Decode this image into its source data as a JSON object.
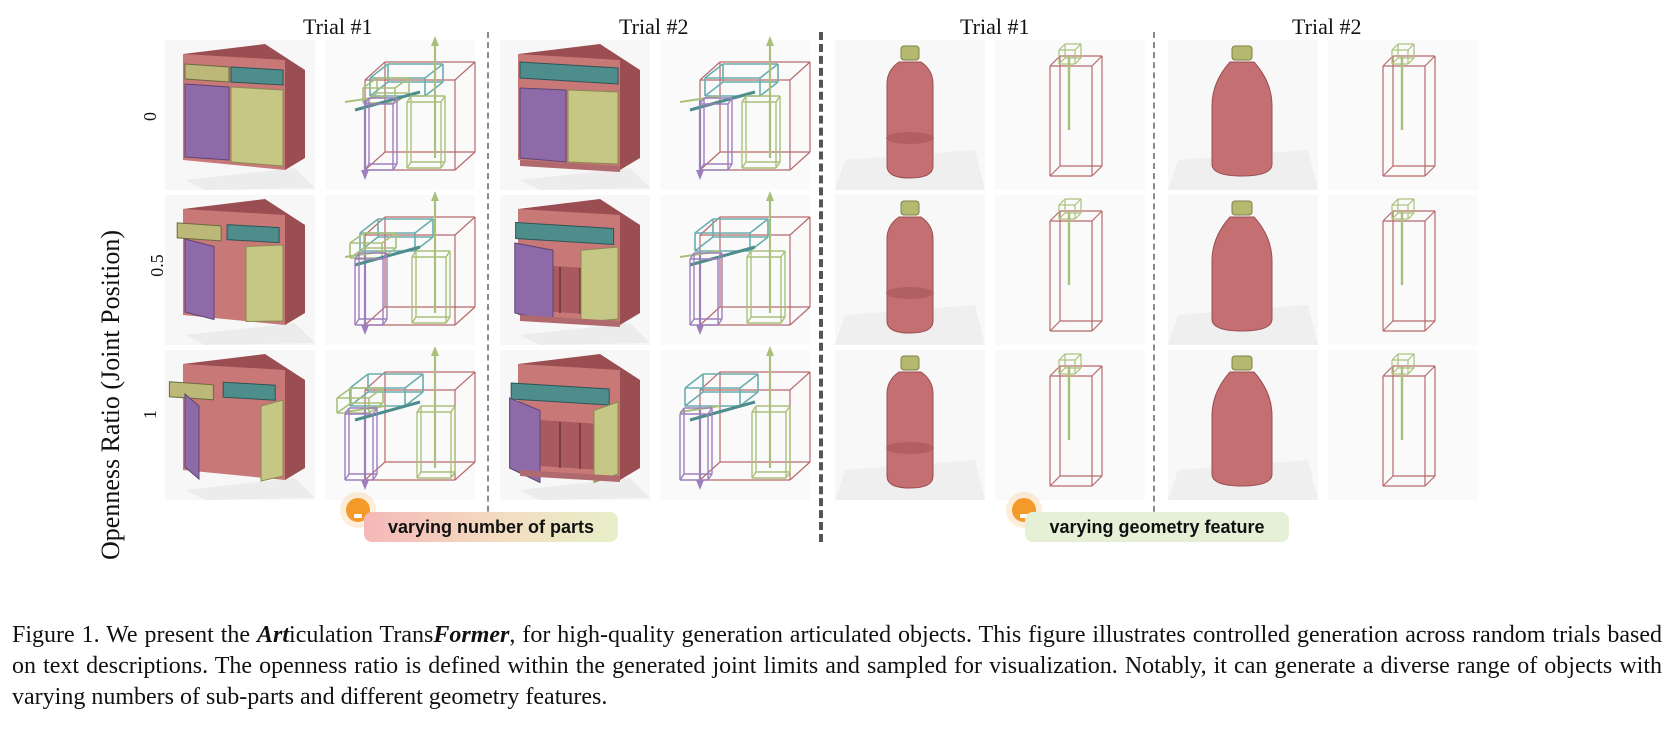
{
  "headers": {
    "col1": "Trial #1",
    "col2": "Trial #2",
    "col3": "Trial #1",
    "col4": "Trial #2"
  },
  "y_axis_label": "Openness Ratio (Joint Position)",
  "row_labels": [
    "0",
    "0.5",
    "1"
  ],
  "badges": {
    "left": "varying number of parts",
    "right": "varying geometry feature"
  },
  "caption": {
    "prefix": "Figure 1.  We present the ",
    "bold1": "Art",
    "mid1": "iculation Trans",
    "bold2": "Former",
    "rest": ", for high-quality generation articulated objects.  This figure illustrates controlled generation across random trials based on text descriptions. The openness ratio is defined within the generated joint limits and sampled for visualization. Notably, it can generate a diverse range of objects with varying numbers of sub-parts and different geometry features."
  },
  "colors": {
    "cabinet_body": "#c97878",
    "cabinet_top": "#9a4e52",
    "door_purple": "#8e6aa8",
    "door_yellow": "#c6c784",
    "drawer_teal": "#4d8e8c",
    "drawer_khaki": "#bbb878",
    "bottle_body": "#c46f72",
    "bottle_cap": "#b5b86f",
    "wire_red": "#b8696a",
    "wire_teal": "#6aaead",
    "wire_green": "#a9c07a",
    "wire_purple": "#9d7fbd",
    "badge_left_start": "#f5b8b8",
    "badge_left_end": "#e7f0c8",
    "badge_right": "#e8f1d8",
    "bulb": "#f39a2b"
  }
}
